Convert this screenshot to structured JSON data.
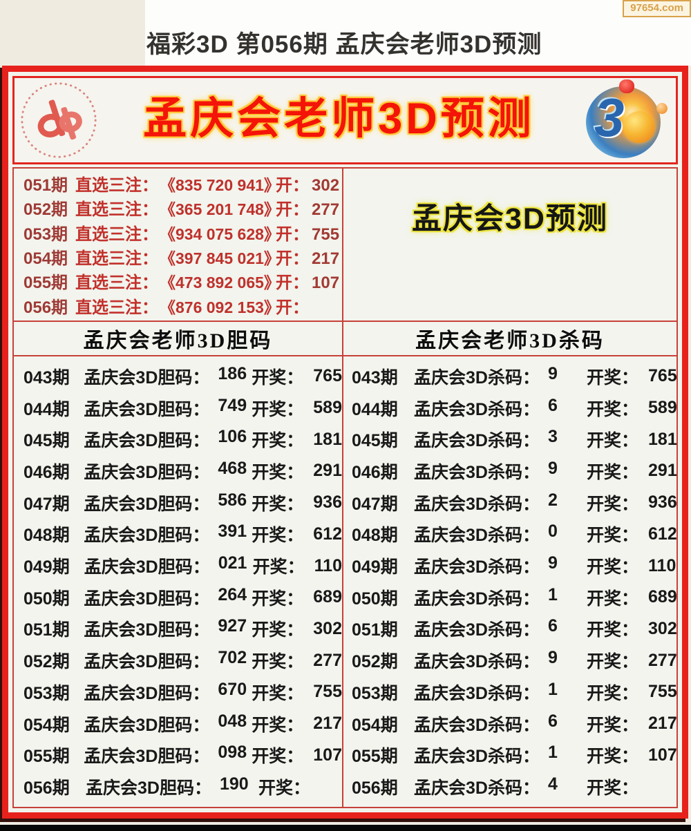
{
  "watermark": {
    "text": "97654.com"
  },
  "page_title": "福彩3D 第056期 孟庆会老师3D预测",
  "banner": {
    "title": "孟庆会老师3D预测",
    "logo3d_text": "3"
  },
  "predictions": {
    "badge": "孟庆会3D预测",
    "rows": [
      {
        "issue": "051期",
        "label": "直选三注：",
        "numbers": "《835 720 941》",
        "open_label": "开：",
        "result": "302"
      },
      {
        "issue": "052期",
        "label": "直选三注：",
        "numbers": "《365 201 748》",
        "open_label": "开：",
        "result": "277"
      },
      {
        "issue": "053期",
        "label": "直选三注：",
        "numbers": "《934 075 628》",
        "open_label": "开：",
        "result": "755"
      },
      {
        "issue": "054期",
        "label": "直选三注：",
        "numbers": "《397 845 021》",
        "open_label": "开：",
        "result": "217"
      },
      {
        "issue": "055期",
        "label": "直选三注：",
        "numbers": "《473 892 065》",
        "open_label": "开：",
        "result": "107"
      },
      {
        "issue": "056期",
        "label": "直选三注：",
        "numbers": "《876 092 153》",
        "open_label": "开：",
        "result": ""
      }
    ]
  },
  "dan_column": {
    "header": "孟庆会老师3D胆码",
    "label": "孟庆会3D胆码：",
    "open_label": "开奖：",
    "rows": [
      {
        "issue": "043期",
        "value": "186",
        "result": "765"
      },
      {
        "issue": "044期",
        "value": "749",
        "result": "589"
      },
      {
        "issue": "045期",
        "value": "106",
        "result": "181"
      },
      {
        "issue": "046期",
        "value": "468",
        "result": "291"
      },
      {
        "issue": "047期",
        "value": "586",
        "result": "936"
      },
      {
        "issue": "048期",
        "value": "391",
        "result": "612"
      },
      {
        "issue": "049期",
        "value": "021",
        "result": "110"
      },
      {
        "issue": "050期",
        "value": "264",
        "result": "689"
      },
      {
        "issue": "051期",
        "value": "927",
        "result": "302"
      },
      {
        "issue": "052期",
        "value": "702",
        "result": "277"
      },
      {
        "issue": "053期",
        "value": "670",
        "result": "755"
      },
      {
        "issue": "054期",
        "value": "048",
        "result": "217"
      },
      {
        "issue": "055期",
        "value": "098",
        "result": "107"
      },
      {
        "issue": "056期",
        "value": "190",
        "result": ""
      }
    ]
  },
  "sha_column": {
    "header": "孟庆会老师3D杀码",
    "label": "孟庆会3D杀码：",
    "open_label": "开奖：",
    "rows": [
      {
        "issue": "043期",
        "value": "9",
        "result": "765"
      },
      {
        "issue": "044期",
        "value": "6",
        "result": "589"
      },
      {
        "issue": "045期",
        "value": "3",
        "result": "181"
      },
      {
        "issue": "046期",
        "value": "9",
        "result": "291"
      },
      {
        "issue": "047期",
        "value": "2",
        "result": "936"
      },
      {
        "issue": "048期",
        "value": "0",
        "result": "612"
      },
      {
        "issue": "049期",
        "value": "9",
        "result": "110"
      },
      {
        "issue": "050期",
        "value": "1",
        "result": "689"
      },
      {
        "issue": "051期",
        "value": "6",
        "result": "302"
      },
      {
        "issue": "052期",
        "value": "9",
        "result": "277"
      },
      {
        "issue": "053期",
        "value": "1",
        "result": "755"
      },
      {
        "issue": "054期",
        "value": "6",
        "result": "217"
      },
      {
        "issue": "055期",
        "value": "1",
        "result": "107"
      },
      {
        "issue": "056期",
        "value": "4",
        "result": ""
      }
    ]
  },
  "colors": {
    "accent_red": "#e7221c",
    "dark_issue_red": "#9f3a36",
    "bright_text_red": "#c2302b",
    "badge_yellow": "#ece43c",
    "title_glow_yellow": "#ffc837",
    "table_line_red": "#c8403a",
    "watermark_orange": "#d9a14a",
    "body_text": "#191919"
  }
}
